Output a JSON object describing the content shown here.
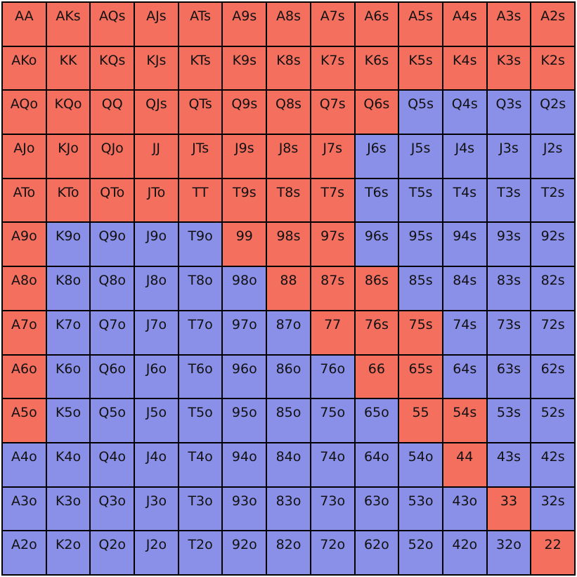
{
  "colors": {
    "raise": "#f46f5e",
    "fold": "#8a90e8"
  },
  "rows": [
    [
      {
        "hand": "AA",
        "action": "raise"
      },
      {
        "hand": "AKs",
        "action": "raise"
      },
      {
        "hand": "AQs",
        "action": "raise"
      },
      {
        "hand": "AJs",
        "action": "raise"
      },
      {
        "hand": "ATs",
        "action": "raise"
      },
      {
        "hand": "A9s",
        "action": "raise"
      },
      {
        "hand": "A8s",
        "action": "raise"
      },
      {
        "hand": "A7s",
        "action": "raise"
      },
      {
        "hand": "A6s",
        "action": "raise"
      },
      {
        "hand": "A5s",
        "action": "raise"
      },
      {
        "hand": "A4s",
        "action": "raise"
      },
      {
        "hand": "A3s",
        "action": "raise"
      },
      {
        "hand": "A2s",
        "action": "raise"
      }
    ],
    [
      {
        "hand": "AKo",
        "action": "raise"
      },
      {
        "hand": "KK",
        "action": "raise"
      },
      {
        "hand": "KQs",
        "action": "raise"
      },
      {
        "hand": "KJs",
        "action": "raise"
      },
      {
        "hand": "KTs",
        "action": "raise"
      },
      {
        "hand": "K9s",
        "action": "raise"
      },
      {
        "hand": "K8s",
        "action": "raise"
      },
      {
        "hand": "K7s",
        "action": "raise"
      },
      {
        "hand": "K6s",
        "action": "raise"
      },
      {
        "hand": "K5s",
        "action": "raise"
      },
      {
        "hand": "K4s",
        "action": "raise"
      },
      {
        "hand": "K3s",
        "action": "raise"
      },
      {
        "hand": "K2s",
        "action": "raise"
      }
    ],
    [
      {
        "hand": "AQo",
        "action": "raise"
      },
      {
        "hand": "KQo",
        "action": "raise"
      },
      {
        "hand": "QQ",
        "action": "raise"
      },
      {
        "hand": "QJs",
        "action": "raise"
      },
      {
        "hand": "QTs",
        "action": "raise"
      },
      {
        "hand": "Q9s",
        "action": "raise"
      },
      {
        "hand": "Q8s",
        "action": "raise"
      },
      {
        "hand": "Q7s",
        "action": "raise"
      },
      {
        "hand": "Q6s",
        "action": "raise"
      },
      {
        "hand": "Q5s",
        "action": "fold"
      },
      {
        "hand": "Q4s",
        "action": "fold"
      },
      {
        "hand": "Q3s",
        "action": "fold"
      },
      {
        "hand": "Q2s",
        "action": "fold"
      }
    ],
    [
      {
        "hand": "AJo",
        "action": "raise"
      },
      {
        "hand": "KJo",
        "action": "raise"
      },
      {
        "hand": "QJo",
        "action": "raise"
      },
      {
        "hand": "JJ",
        "action": "raise"
      },
      {
        "hand": "JTs",
        "action": "raise"
      },
      {
        "hand": "J9s",
        "action": "raise"
      },
      {
        "hand": "J8s",
        "action": "raise"
      },
      {
        "hand": "J7s",
        "action": "raise"
      },
      {
        "hand": "J6s",
        "action": "fold"
      },
      {
        "hand": "J5s",
        "action": "fold"
      },
      {
        "hand": "J4s",
        "action": "fold"
      },
      {
        "hand": "J3s",
        "action": "fold"
      },
      {
        "hand": "J2s",
        "action": "fold"
      }
    ],
    [
      {
        "hand": "ATo",
        "action": "raise"
      },
      {
        "hand": "KTo",
        "action": "raise"
      },
      {
        "hand": "QTo",
        "action": "raise"
      },
      {
        "hand": "JTo",
        "action": "raise"
      },
      {
        "hand": "TT",
        "action": "raise"
      },
      {
        "hand": "T9s",
        "action": "raise"
      },
      {
        "hand": "T8s",
        "action": "raise"
      },
      {
        "hand": "T7s",
        "action": "raise"
      },
      {
        "hand": "T6s",
        "action": "fold"
      },
      {
        "hand": "T5s",
        "action": "fold"
      },
      {
        "hand": "T4s",
        "action": "fold"
      },
      {
        "hand": "T3s",
        "action": "fold"
      },
      {
        "hand": "T2s",
        "action": "fold"
      }
    ],
    [
      {
        "hand": "A9o",
        "action": "raise"
      },
      {
        "hand": "K9o",
        "action": "fold"
      },
      {
        "hand": "Q9o",
        "action": "fold"
      },
      {
        "hand": "J9o",
        "action": "fold"
      },
      {
        "hand": "T9o",
        "action": "fold"
      },
      {
        "hand": "99",
        "action": "raise"
      },
      {
        "hand": "98s",
        "action": "raise"
      },
      {
        "hand": "97s",
        "action": "raise"
      },
      {
        "hand": "96s",
        "action": "fold"
      },
      {
        "hand": "95s",
        "action": "fold"
      },
      {
        "hand": "94s",
        "action": "fold"
      },
      {
        "hand": "93s",
        "action": "fold"
      },
      {
        "hand": "92s",
        "action": "fold"
      }
    ],
    [
      {
        "hand": "A8o",
        "action": "raise"
      },
      {
        "hand": "K8o",
        "action": "fold"
      },
      {
        "hand": "Q8o",
        "action": "fold"
      },
      {
        "hand": "J8o",
        "action": "fold"
      },
      {
        "hand": "T8o",
        "action": "fold"
      },
      {
        "hand": "98o",
        "action": "fold"
      },
      {
        "hand": "88",
        "action": "raise"
      },
      {
        "hand": "87s",
        "action": "raise"
      },
      {
        "hand": "86s",
        "action": "raise"
      },
      {
        "hand": "85s",
        "action": "fold"
      },
      {
        "hand": "84s",
        "action": "fold"
      },
      {
        "hand": "83s",
        "action": "fold"
      },
      {
        "hand": "82s",
        "action": "fold"
      }
    ],
    [
      {
        "hand": "A7o",
        "action": "raise"
      },
      {
        "hand": "K7o",
        "action": "fold"
      },
      {
        "hand": "Q7o",
        "action": "fold"
      },
      {
        "hand": "J7o",
        "action": "fold"
      },
      {
        "hand": "T7o",
        "action": "fold"
      },
      {
        "hand": "97o",
        "action": "fold"
      },
      {
        "hand": "87o",
        "action": "fold"
      },
      {
        "hand": "77",
        "action": "raise"
      },
      {
        "hand": "76s",
        "action": "raise"
      },
      {
        "hand": "75s",
        "action": "raise"
      },
      {
        "hand": "74s",
        "action": "fold"
      },
      {
        "hand": "73s",
        "action": "fold"
      },
      {
        "hand": "72s",
        "action": "fold"
      }
    ],
    [
      {
        "hand": "A6o",
        "action": "raise"
      },
      {
        "hand": "K6o",
        "action": "fold"
      },
      {
        "hand": "Q6o",
        "action": "fold"
      },
      {
        "hand": "J6o",
        "action": "fold"
      },
      {
        "hand": "T6o",
        "action": "fold"
      },
      {
        "hand": "96o",
        "action": "fold"
      },
      {
        "hand": "86o",
        "action": "fold"
      },
      {
        "hand": "76o",
        "action": "fold"
      },
      {
        "hand": "66",
        "action": "raise"
      },
      {
        "hand": "65s",
        "action": "raise"
      },
      {
        "hand": "64s",
        "action": "fold"
      },
      {
        "hand": "63s",
        "action": "fold"
      },
      {
        "hand": "62s",
        "action": "fold"
      }
    ],
    [
      {
        "hand": "A5o",
        "action": "raise"
      },
      {
        "hand": "K5o",
        "action": "fold"
      },
      {
        "hand": "Q5o",
        "action": "fold"
      },
      {
        "hand": "J5o",
        "action": "fold"
      },
      {
        "hand": "T5o",
        "action": "fold"
      },
      {
        "hand": "95o",
        "action": "fold"
      },
      {
        "hand": "85o",
        "action": "fold"
      },
      {
        "hand": "75o",
        "action": "fold"
      },
      {
        "hand": "65o",
        "action": "fold"
      },
      {
        "hand": "55",
        "action": "raise"
      },
      {
        "hand": "54s",
        "action": "raise"
      },
      {
        "hand": "53s",
        "action": "fold"
      },
      {
        "hand": "52s",
        "action": "fold"
      }
    ],
    [
      {
        "hand": "A4o",
        "action": "fold"
      },
      {
        "hand": "K4o",
        "action": "fold"
      },
      {
        "hand": "Q4o",
        "action": "fold"
      },
      {
        "hand": "J4o",
        "action": "fold"
      },
      {
        "hand": "T4o",
        "action": "fold"
      },
      {
        "hand": "94o",
        "action": "fold"
      },
      {
        "hand": "84o",
        "action": "fold"
      },
      {
        "hand": "74o",
        "action": "fold"
      },
      {
        "hand": "64o",
        "action": "fold"
      },
      {
        "hand": "54o",
        "action": "fold"
      },
      {
        "hand": "44",
        "action": "raise"
      },
      {
        "hand": "43s",
        "action": "fold"
      },
      {
        "hand": "42s",
        "action": "fold"
      }
    ],
    [
      {
        "hand": "A3o",
        "action": "fold"
      },
      {
        "hand": "K3o",
        "action": "fold"
      },
      {
        "hand": "Q3o",
        "action": "fold"
      },
      {
        "hand": "J3o",
        "action": "fold"
      },
      {
        "hand": "T3o",
        "action": "fold"
      },
      {
        "hand": "93o",
        "action": "fold"
      },
      {
        "hand": "83o",
        "action": "fold"
      },
      {
        "hand": "73o",
        "action": "fold"
      },
      {
        "hand": "63o",
        "action": "fold"
      },
      {
        "hand": "53o",
        "action": "fold"
      },
      {
        "hand": "43o",
        "action": "fold"
      },
      {
        "hand": "33",
        "action": "raise"
      },
      {
        "hand": "32s",
        "action": "fold"
      }
    ],
    [
      {
        "hand": "A2o",
        "action": "fold"
      },
      {
        "hand": "K2o",
        "action": "fold"
      },
      {
        "hand": "Q2o",
        "action": "fold"
      },
      {
        "hand": "J2o",
        "action": "fold"
      },
      {
        "hand": "T2o",
        "action": "fold"
      },
      {
        "hand": "92o",
        "action": "fold"
      },
      {
        "hand": "82o",
        "action": "fold"
      },
      {
        "hand": "72o",
        "action": "fold"
      },
      {
        "hand": "62o",
        "action": "fold"
      },
      {
        "hand": "52o",
        "action": "fold"
      },
      {
        "hand": "42o",
        "action": "fold"
      },
      {
        "hand": "32o",
        "action": "fold"
      },
      {
        "hand": "22",
        "action": "raise"
      }
    ]
  ]
}
